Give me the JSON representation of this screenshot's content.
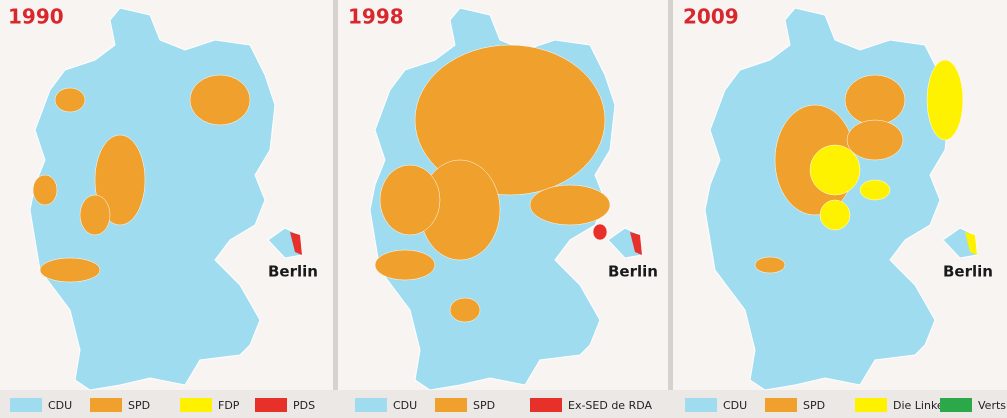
{
  "panels": [
    {
      "year": "1990",
      "berlin": "Berlin",
      "legend": [
        {
          "label": "CDU",
          "color": "#9fdcf0"
        },
        {
          "label": "SPD",
          "color": "#f0a02c"
        },
        {
          "label": "FDP",
          "color": "#fff200"
        },
        {
          "label": "PDS",
          "color": "#e8302a"
        }
      ]
    },
    {
      "year": "1998",
      "berlin": "Berlin",
      "legend": [
        {
          "label": "CDU",
          "color": "#9fdcf0"
        },
        {
          "label": "SPD",
          "color": "#f0a02c"
        },
        {
          "label": "Ex-SED de RDA",
          "color": "#e8302a"
        }
      ]
    },
    {
      "year": "2009",
      "berlin": "Berlin",
      "legend": [
        {
          "label": "CDU",
          "color": "#9fdcf0"
        },
        {
          "label": "SPD",
          "color": "#f0a02c"
        },
        {
          "label": "Die Linke",
          "color": "#fff200"
        },
        {
          "label": "Verts",
          "color": "#2aa84a"
        }
      ]
    }
  ]
}
